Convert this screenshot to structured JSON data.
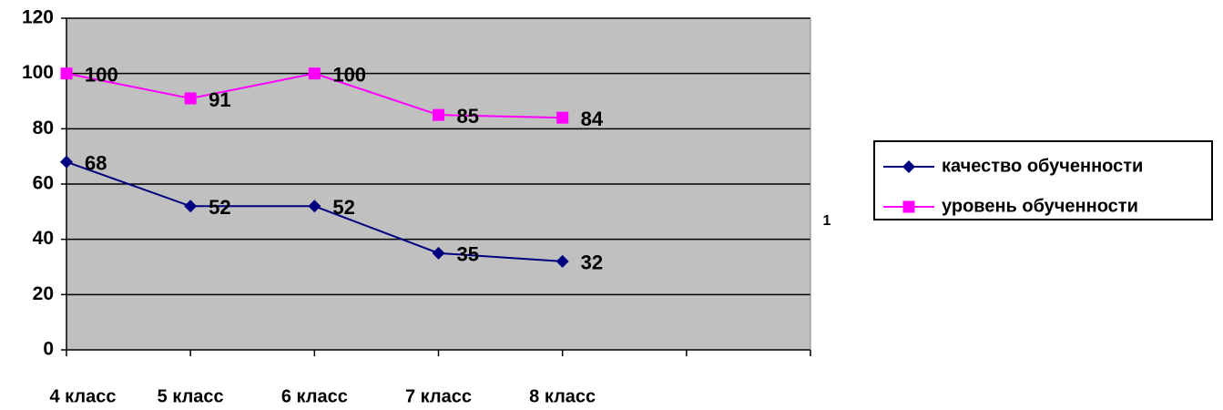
{
  "chart_data": {
    "type": "line",
    "categories": [
      "4 класс",
      "5 класс",
      "6 класс",
      "7 класс",
      "8 класс",
      null,
      null
    ],
    "series": [
      {
        "name": "качество обученности",
        "color": "#000080",
        "marker": "diamond",
        "values": [
          68,
          52,
          52,
          35,
          32,
          null,
          null
        ]
      },
      {
        "name": "уровень обученности",
        "color": "#ff00ff",
        "marker": "square",
        "values": [
          100,
          91,
          100,
          85,
          84,
          null,
          null
        ]
      }
    ],
    "ylim": [
      0,
      120
    ],
    "yticks": [
      0,
      20,
      40,
      60,
      80,
      100,
      120
    ],
    "grid": true,
    "annotation": "1",
    "legend": "right"
  }
}
